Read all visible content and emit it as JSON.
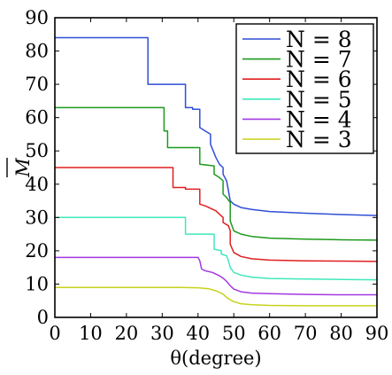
{
  "chart_data": {
    "type": "line",
    "title": "",
    "xlabel": "θ(degree)",
    "ylabel": "M",
    "xlim": [
      0,
      90
    ],
    "ylim": [
      0,
      90
    ],
    "x_ticks": [
      0,
      10,
      20,
      30,
      40,
      50,
      60,
      70,
      80,
      90
    ],
    "y_ticks": [
      0,
      10,
      20,
      30,
      40,
      50,
      60,
      70,
      80,
      90
    ],
    "grid": false,
    "legend_position": "top-right",
    "series": [
      {
        "name": "N = 8",
        "color": "#2f4fd6",
        "points": [
          [
            0,
            84
          ],
          [
            26,
            84
          ],
          [
            26,
            70
          ],
          [
            36.5,
            70
          ],
          [
            36.5,
            63
          ],
          [
            38.5,
            63
          ],
          [
            38.5,
            62.5
          ],
          [
            40.5,
            62.5
          ],
          [
            40.5,
            57
          ],
          [
            42,
            56
          ],
          [
            43.5,
            55
          ],
          [
            43.5,
            52
          ],
          [
            45,
            48
          ],
          [
            46,
            46
          ],
          [
            47,
            45
          ],
          [
            47,
            43
          ],
          [
            48,
            41
          ],
          [
            48.5,
            38
          ],
          [
            49,
            35
          ],
          [
            50,
            34
          ],
          [
            52,
            33
          ],
          [
            55,
            32.4
          ],
          [
            60,
            31.8
          ],
          [
            70,
            31.3
          ],
          [
            80,
            30.9
          ],
          [
            90,
            30.6
          ]
        ]
      },
      {
        "name": "N = 7",
        "color": "#1d9a1d",
        "points": [
          [
            0,
            63
          ],
          [
            30.5,
            63
          ],
          [
            30.5,
            56
          ],
          [
            31.5,
            56
          ],
          [
            31.5,
            51
          ],
          [
            40.5,
            51
          ],
          [
            40.5,
            46
          ],
          [
            44.5,
            45.5
          ],
          [
            44.5,
            43
          ],
          [
            46,
            42
          ],
          [
            47,
            41
          ],
          [
            47,
            37
          ],
          [
            48,
            36
          ],
          [
            49,
            34.5
          ],
          [
            49,
            29
          ],
          [
            50,
            26
          ],
          [
            52,
            25
          ],
          [
            55,
            24.3
          ],
          [
            60,
            23.8
          ],
          [
            70,
            23.5
          ],
          [
            80,
            23.3
          ],
          [
            90,
            23.2
          ]
        ]
      },
      {
        "name": "N = 6",
        "color": "#e01f1f",
        "points": [
          [
            0,
            45
          ],
          [
            33,
            45
          ],
          [
            33,
            39
          ],
          [
            36.5,
            39
          ],
          [
            36.5,
            38.5
          ],
          [
            40.5,
            38.5
          ],
          [
            40.5,
            34
          ],
          [
            42,
            33.5
          ],
          [
            44,
            32.5
          ],
          [
            45,
            32
          ],
          [
            46,
            31
          ],
          [
            47,
            30
          ],
          [
            47,
            28.5
          ],
          [
            48.5,
            27.5
          ],
          [
            49,
            26
          ],
          [
            49,
            22
          ],
          [
            50,
            19.5
          ],
          [
            52,
            18.3
          ],
          [
            55,
            17.6
          ],
          [
            60,
            17.2
          ],
          [
            70,
            17
          ],
          [
            80,
            16.9
          ],
          [
            90,
            16.8
          ]
        ]
      },
      {
        "name": "N = 5",
        "color": "#3fe8bc",
        "points": [
          [
            0,
            30
          ],
          [
            36.5,
            30
          ],
          [
            36.5,
            25
          ],
          [
            44.5,
            25
          ],
          [
            44.5,
            20.5
          ],
          [
            46.5,
            20
          ],
          [
            46.5,
            19
          ],
          [
            48,
            18.5
          ],
          [
            48.5,
            17
          ],
          [
            49,
            15
          ],
          [
            50,
            13.5
          ],
          [
            52,
            12.7
          ],
          [
            55,
            12.1
          ],
          [
            60,
            11.7
          ],
          [
            70,
            11.5
          ],
          [
            80,
            11.4
          ],
          [
            90,
            11.3
          ]
        ]
      },
      {
        "name": "N = 4",
        "color": "#a339e0",
        "points": [
          [
            0,
            18
          ],
          [
            40,
            18
          ],
          [
            40.5,
            17
          ],
          [
            41,
            14.5
          ],
          [
            42,
            14
          ],
          [
            44,
            13.5
          ],
          [
            45,
            13
          ],
          [
            46,
            12.5
          ],
          [
            47,
            11.8
          ],
          [
            48,
            10.8
          ],
          [
            49,
            9.5
          ],
          [
            50,
            8.5
          ],
          [
            52,
            7.7
          ],
          [
            55,
            7.3
          ],
          [
            60,
            7.1
          ],
          [
            70,
            6.9
          ],
          [
            80,
            6.8
          ],
          [
            90,
            6.8
          ]
        ]
      },
      {
        "name": "N = 3",
        "color": "#c7d21a",
        "points": [
          [
            0,
            9
          ],
          [
            35,
            9
          ],
          [
            40,
            8.9
          ],
          [
            43,
            8.6
          ],
          [
            45,
            8
          ],
          [
            47,
            7
          ],
          [
            48,
            6
          ],
          [
            49,
            5.3
          ],
          [
            50,
            4.7
          ],
          [
            52,
            4.1
          ],
          [
            55,
            3.8
          ],
          [
            60,
            3.6
          ],
          [
            70,
            3.5
          ],
          [
            80,
            3.5
          ],
          [
            90,
            3.5
          ]
        ]
      }
    ]
  }
}
